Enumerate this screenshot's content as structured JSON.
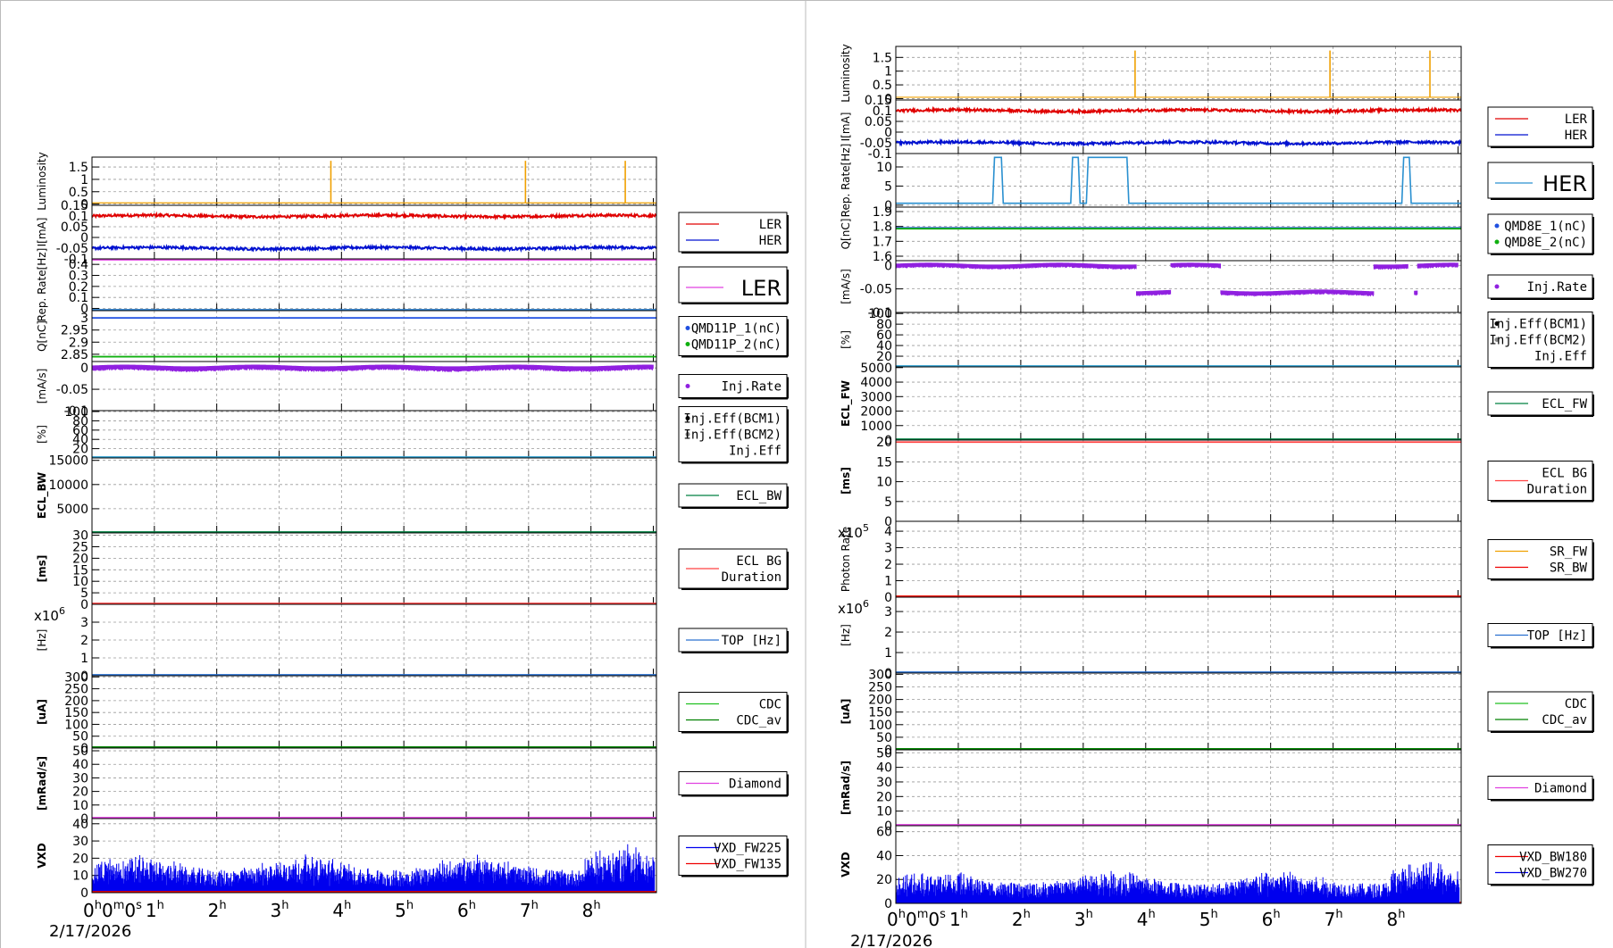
{
  "chart_data": [
    {
      "type": "line",
      "title": "",
      "date": "2/17/2026",
      "x_axis": {
        "ticks": [
          "0h0m0s",
          "1h",
          "2h",
          "3h",
          "4h",
          "5h",
          "6h",
          "7h",
          "8h"
        ],
        "range_h": [
          0,
          9.05
        ]
      },
      "strips": [
        {
          "ylabel": "Luminosity",
          "yticks": [
            "1.5",
            "1",
            "0.5",
            "0"
          ],
          "ylim": [
            -0.05,
            1.9
          ],
          "series": [
            {
              "color": "#f0a000",
              "kind": "spikes",
              "base": 0.05,
              "spikes": [
                [
                  3.83,
                  1.75
                ],
                [
                  6.95,
                  1.75
                ],
                [
                  8.55,
                  1.75
                ]
              ]
            }
          ],
          "legend": null
        },
        {
          "ylabel": "I[mA]",
          "yticks": [
            "0.15",
            "0.1",
            "0.05",
            "0",
            "-0.05",
            "-0.1"
          ],
          "ylim": [
            -0.1,
            0.15
          ],
          "series": [
            {
              "name": "LER",
              "color": "#e00000",
              "kind": "noisy",
              "level": 0.1,
              "amp": 0.006
            },
            {
              "name": "HER",
              "color": "#0010d0",
              "kind": "noisy",
              "level": -0.05,
              "amp": 0.006
            }
          ],
          "legend": {
            "entries": [
              "LER",
              "HER"
            ],
            "big": false
          }
        },
        {
          "ylabel": "Rep. Rate[Hz]",
          "yticks": [
            "0.4",
            "0.3",
            "0.2",
            "0.1",
            "0"
          ],
          "ylim": [
            -0.02,
            0.45
          ],
          "series": [
            {
              "name": "LER",
              "color": "#e040e0",
              "kind": "flat",
              "level": 0.45
            },
            {
              "name": "HER",
              "color": "#2a7fd0",
              "kind": "flat",
              "level": -0.02
            }
          ],
          "legend": {
            "entries": [
              "LER"
            ],
            "big": true
          }
        },
        {
          "ylabel": "Q[nC]",
          "yticks": [
            "3",
            "2.95",
            "2.9",
            "2.85"
          ],
          "ylim": [
            2.82,
            3.03
          ],
          "series": [
            {
              "name": "QMD11P_1(nC)",
              "color": "#2050e0",
              "kind": "flat",
              "level": 3.0
            },
            {
              "name": "QMD11P_2(nC)",
              "color": "#10b010",
              "kind": "flat",
              "level": 2.84
            }
          ],
          "legend": {
            "entries": [
              "QMD11P_1(nC)",
              "QMD11P_2(nC)"
            ],
            "markers": true
          }
        },
        {
          "ylabel": "[mA/s]",
          "yticks": [
            "0",
            "-0.05",
            "-0.1"
          ],
          "ylim": [
            -0.1,
            0.015
          ],
          "series": [
            {
              "name": "Inj.Rate",
              "color": "#9020e0",
              "kind": "dotsband",
              "level": 0.0,
              "amp": 0.005,
              "wave": 0.002
            }
          ],
          "legend": {
            "entries": [
              "Inj.Rate"
            ],
            "markers": true
          }
        },
        {
          "ylabel": "[%]",
          "yticks": [
            "100",
            "80",
            "60",
            "40",
            "20"
          ],
          "ylim": [
            0,
            102
          ],
          "series": [
            {
              "name": "Inj.Eff",
              "color": "#30a0d0",
              "kind": "flat",
              "level": 0
            }
          ],
          "legend": {
            "entries": [
              "Inj.Eff(BCM1)",
              "Inj.Eff(BCM2)",
              "Inj.Eff"
            ],
            "markers": true
          }
        },
        {
          "ylabel": "ECL_BW",
          "bold": true,
          "yticks": [
            "15000",
            "10000",
            "5000"
          ],
          "ylim": [
            0,
            15500
          ],
          "series": [
            {
              "name": "ECL_BW",
              "color": "#008040",
              "kind": "flat",
              "level": 0
            }
          ],
          "legend": {
            "entries": [
              "ECL_BW"
            ]
          }
        },
        {
          "ylabel": "[ms]",
          "bold": true,
          "yticks": [
            "30",
            "25",
            "20",
            "15",
            "10",
            "5",
            "0"
          ],
          "ylim": [
            0,
            31
          ],
          "series": [
            {
              "name": "ECL BG Duration",
              "color": "#ff4040",
              "kind": "flat",
              "level": 0
            }
          ],
          "legend": {
            "entries": [
              "ECL BG",
              "Duration"
            ],
            "twoLine": true
          }
        },
        {
          "ylabel": "[Hz]",
          "multiplier": "x10^6",
          "yticks": [
            "3",
            "2",
            "1",
            "0"
          ],
          "ylim": [
            0,
            4
          ],
          "series": [
            {
              "name": "TOP [Hz]",
              "color": "#2a70d0",
              "kind": "flat",
              "level": 0
            }
          ],
          "legend": {
            "entries": [
              "TOP [Hz]"
            ]
          }
        },
        {
          "ylabel": "[uA]",
          "bold": true,
          "yticks": [
            "300",
            "250",
            "200",
            "150",
            "100",
            "50",
            "0"
          ],
          "ylim": [
            0,
            305
          ],
          "series": [
            {
              "name": "CDC",
              "color": "#20c020",
              "kind": "flat",
              "level": 0
            },
            {
              "name": "CDC_av",
              "color": "#008000",
              "kind": "flat",
              "level": 0
            }
          ],
          "legend": {
            "entries": [
              "CDC",
              "CDC_av"
            ]
          }
        },
        {
          "ylabel": "[mRad/s]",
          "bold": true,
          "yticks": [
            "50",
            "40",
            "30",
            "20",
            "10",
            "0"
          ],
          "ylim": [
            0,
            52
          ],
          "series": [
            {
              "name": "Diamond",
              "color": "#e040e0",
              "kind": "flat",
              "level": 0
            }
          ],
          "legend": {
            "entries": [
              "Diamond"
            ]
          }
        },
        {
          "ylabel": "VXD",
          "bold": true,
          "yticks": [
            "40",
            "30",
            "20",
            "10",
            "0"
          ],
          "ylim": [
            0,
            43
          ],
          "series": [
            {
              "name": "VXD_FW225",
              "color": "#0000ee",
              "kind": "bars",
              "base": 11,
              "amp": 14
            },
            {
              "name": "VXD_FW135",
              "color": "#ee0000",
              "kind": "flat",
              "level": 0.3
            }
          ],
          "legend": {
            "entries": [
              "VXD_FW225",
              "VXD_FW135"
            ]
          }
        }
      ]
    },
    {
      "type": "line",
      "title": "",
      "date": "2/17/2026",
      "x_axis": {
        "ticks": [
          "0h0m0s",
          "1h",
          "2h",
          "3h",
          "4h",
          "5h",
          "6h",
          "7h",
          "8h"
        ],
        "range_h": [
          0,
          9.05
        ]
      },
      "strips": [
        {
          "ylabel": "Luminosity",
          "yticks": [
            "1.5",
            "1",
            "0.5",
            "0"
          ],
          "ylim": [
            -0.05,
            1.9
          ],
          "series": [
            {
              "color": "#f0a000",
              "kind": "spikes",
              "base": 0.05,
              "spikes": [
                [
                  3.83,
                  1.75
                ],
                [
                  6.95,
                  1.75
                ],
                [
                  8.55,
                  1.75
                ]
              ]
            }
          ],
          "legend": null
        },
        {
          "ylabel": "I[mA]",
          "yticks": [
            "0.15",
            "0.1",
            "0.05",
            "0",
            "-0.05",
            "-0.1"
          ],
          "ylim": [
            -0.1,
            0.15
          ],
          "series": [
            {
              "name": "LER",
              "color": "#e00000",
              "kind": "noisy",
              "level": 0.1,
              "amp": 0.006
            },
            {
              "name": "HER",
              "color": "#0010d0",
              "kind": "noisy",
              "level": -0.05,
              "amp": 0.006
            }
          ],
          "legend": {
            "entries": [
              "LER",
              "HER"
            ]
          }
        },
        {
          "ylabel": "Rep. Rate[Hz]",
          "yticks": [
            "10",
            "5",
            "0"
          ],
          "ylim": [
            -0.5,
            13.5
          ],
          "series": [
            {
              "name": "HER",
              "color": "#2a90d0",
              "kind": "steps",
              "low": 0.5,
              "high": 12.5,
              "on": [
                [
                  1.55,
                  1.72
                ],
                [
                  2.8,
                  2.95
                ],
                [
                  3.05,
                  3.73
                ],
                [
                  8.1,
                  8.25
                ]
              ]
            }
          ],
          "legend": {
            "entries": [
              "HER"
            ],
            "big": true
          }
        },
        {
          "ylabel": "Q[nC]",
          "yticks": [
            "1.9",
            "1.8",
            "1.7",
            "1.6"
          ],
          "ylim": [
            1.57,
            1.93
          ],
          "series": [
            {
              "name": "QMD8E_1(nC)",
              "color": "#2050e0",
              "kind": "flat",
              "level": 1.79
            },
            {
              "name": "QMD8E_2(nC)",
              "color": "#10b010",
              "kind": "flat",
              "level": 1.785
            }
          ],
          "legend": {
            "entries": [
              "QMD8E_1(nC)",
              "QMD8E_2(nC)"
            ],
            "markers": true
          }
        },
        {
          "ylabel": "[mA/s]",
          "yticks": [
            "0",
            "-0.05",
            "-0.1"
          ],
          "ylim": [
            -0.1,
            0.01
          ],
          "series": [
            {
              "name": "Inj.Rate",
              "color": "#9020e0",
              "kind": "injsegs",
              "segs": [
                [
                  0.0,
                  3.85,
                  -0.001
                ],
                [
                  3.85,
                  4.4,
                  -0.058
                ],
                [
                  4.4,
                  5.2,
                  -0.001
                ],
                [
                  5.2,
                  7.65,
                  -0.058
                ],
                [
                  7.65,
                  8.2,
                  -0.001
                ],
                [
                  8.3,
                  8.35,
                  -0.058
                ],
                [
                  8.35,
                  9.0,
                  -0.001
                ]
              ],
              "amp": 0.004,
              "wave": 0.002
            }
          ],
          "legend": {
            "entries": [
              "Inj.Rate"
            ],
            "markers": true
          }
        },
        {
          "ylabel": "[%]",
          "yticks": [
            "100",
            "80",
            "60",
            "40",
            "20"
          ],
          "ylim": [
            0,
            102
          ],
          "series": [
            {
              "name": "Inj.Eff",
              "color": "#30a0d0",
              "kind": "flat",
              "level": 0
            }
          ],
          "legend": {
            "entries": [
              "Inj.Eff(BCM1)",
              "Inj.Eff(BCM2)",
              "Inj.Eff"
            ],
            "markers": true
          }
        },
        {
          "ylabel": "ECL_FW",
          "bold": true,
          "yticks": [
            "5000",
            "4000",
            "3000",
            "2000",
            "1000",
            "0"
          ],
          "ylim": [
            0,
            5050
          ],
          "series": [
            {
              "name": "ECL_FW",
              "color": "#008040",
              "kind": "flat",
              "level": 0
            }
          ],
          "legend": {
            "entries": [
              "ECL_FW"
            ]
          }
        },
        {
          "ylabel": "[ms]",
          "bold": true,
          "yticks": [
            "20",
            "15",
            "10",
            "5",
            "0"
          ],
          "ylim": [
            0,
            20.5
          ],
          "series": [
            {
              "name": "ECL BG Duration",
              "color": "#ff4040",
              "kind": "flat",
              "level": 20
            }
          ],
          "legend": {
            "entries": [
              "ECL BG",
              "Duration"
            ],
            "twoLine": true
          }
        },
        {
          "ylabel": "Photon Rate",
          "multiplier": "x10^5",
          "yticks": [
            "4",
            "3",
            "2",
            "1",
            "0"
          ],
          "ylim": [
            0,
            4.6
          ],
          "series": [
            {
              "name": "SR_FW",
              "color": "#f0a000",
              "kind": "flat",
              "level": 0
            },
            {
              "name": "SR_BW",
              "color": "#ee0000",
              "kind": "flat",
              "level": 0
            }
          ],
          "legend": {
            "entries": [
              "SR_FW",
              "SR_BW"
            ]
          }
        },
        {
          "ylabel": "[Hz]",
          "multiplier": "x10^6",
          "yticks": [
            "3",
            "2",
            "1",
            "0"
          ],
          "ylim": [
            0,
            3.7
          ],
          "series": [
            {
              "name": "TOP [Hz]",
              "color": "#2a70d0",
              "kind": "flat",
              "level": 0
            }
          ],
          "legend": {
            "entries": [
              "TOP [Hz]"
            ]
          }
        },
        {
          "ylabel": "[uA]",
          "bold": true,
          "yticks": [
            "300",
            "250",
            "200",
            "150",
            "100",
            "50",
            "0"
          ],
          "ylim": [
            0,
            305
          ],
          "series": [
            {
              "name": "CDC",
              "color": "#20c020",
              "kind": "flat",
              "level": 0
            },
            {
              "name": "CDC_av",
              "color": "#008000",
              "kind": "flat",
              "level": 0
            }
          ],
          "legend": {
            "entries": [
              "CDC",
              "CDC_av"
            ]
          }
        },
        {
          "ylabel": "[mRad/s]",
          "bold": true,
          "yticks": [
            "50",
            "40",
            "30",
            "20",
            "10",
            "0"
          ],
          "ylim": [
            0,
            52
          ],
          "series": [
            {
              "name": "Diamond",
              "color": "#e040e0",
              "kind": "flat",
              "level": 0
            }
          ],
          "legend": {
            "entries": [
              "Diamond"
            ]
          }
        },
        {
          "ylabel": "VXD",
          "bold": true,
          "yticks": [
            "60",
            "40",
            "20",
            "0"
          ],
          "ylim": [
            0,
            65
          ],
          "series": [
            {
              "name": "VXD_BW180",
              "color": "#ee0000",
              "kind": "flat",
              "level": 0.3
            },
            {
              "name": "VXD_BW270",
              "color": "#0000ee",
              "kind": "bars",
              "base": 14,
              "amp": 18
            }
          ],
          "legend": {
            "entries": [
              "VXD_BW180",
              "VXD_BW270"
            ]
          }
        }
      ]
    }
  ]
}
